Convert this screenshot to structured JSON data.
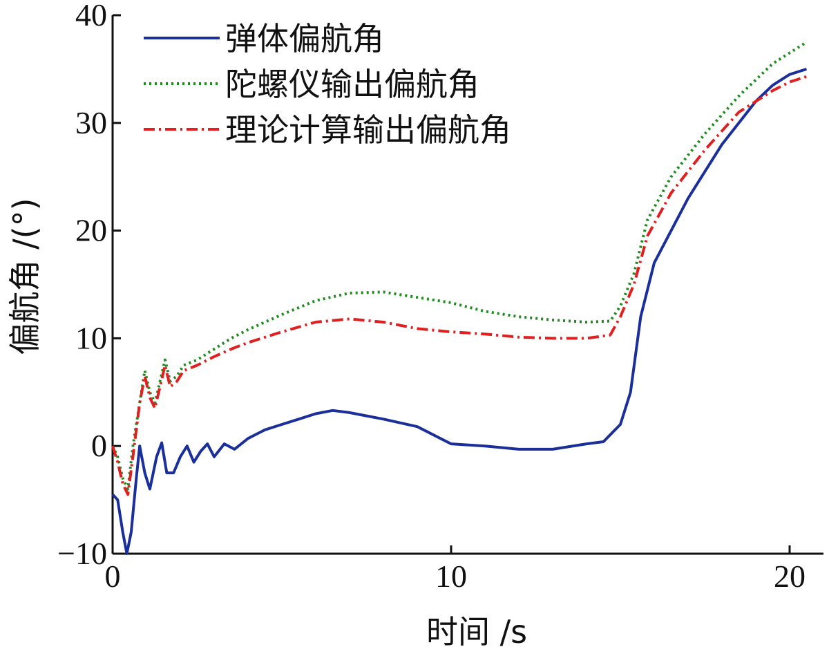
{
  "chart_data": {
    "type": "line",
    "xlabel": "时间 /s",
    "ylabel": "偏航角 /(°)",
    "xlim": [
      0,
      21
    ],
    "ylim": [
      -10,
      40
    ],
    "x_ticks": [
      0,
      10,
      20
    ],
    "y_ticks": [
      -10,
      0,
      10,
      20,
      30,
      40
    ],
    "grid": false,
    "legend_position": "top-left",
    "series": [
      {
        "name": "弹体偏航角",
        "color": "#1a2f9a",
        "style": "solid",
        "points": [
          [
            0,
            -4.5
          ],
          [
            0.15,
            -5
          ],
          [
            0.3,
            -8
          ],
          [
            0.42,
            -10
          ],
          [
            0.55,
            -8
          ],
          [
            0.7,
            -3
          ],
          [
            0.8,
            0
          ],
          [
            0.95,
            -2.5
          ],
          [
            1.1,
            -4
          ],
          [
            1.3,
            -1
          ],
          [
            1.45,
            0.3
          ],
          [
            1.6,
            -2.5
          ],
          [
            1.8,
            -2.5
          ],
          [
            2.0,
            -1
          ],
          [
            2.2,
            0
          ],
          [
            2.4,
            -1.5
          ],
          [
            2.6,
            -0.5
          ],
          [
            2.8,
            0.2
          ],
          [
            3.0,
            -1
          ],
          [
            3.3,
            0.2
          ],
          [
            3.6,
            -0.3
          ],
          [
            4.0,
            0.7
          ],
          [
            4.5,
            1.5
          ],
          [
            5.0,
            2.0
          ],
          [
            5.5,
            2.5
          ],
          [
            6.0,
            3.0
          ],
          [
            6.5,
            3.3
          ],
          [
            7.0,
            3.1
          ],
          [
            7.5,
            2.8
          ],
          [
            8.0,
            2.5
          ],
          [
            9.0,
            1.8
          ],
          [
            10.0,
            0.2
          ],
          [
            11.0,
            0.0
          ],
          [
            12.0,
            -0.3
          ],
          [
            13.0,
            -0.3
          ],
          [
            14.0,
            0.2
          ],
          [
            14.5,
            0.4
          ],
          [
            15.0,
            2.0
          ],
          [
            15.3,
            5
          ],
          [
            15.6,
            12
          ],
          [
            16.0,
            17
          ],
          [
            17.0,
            23
          ],
          [
            18.0,
            28
          ],
          [
            19.0,
            32
          ],
          [
            19.5,
            33.5
          ],
          [
            20.0,
            34.5
          ],
          [
            20.5,
            35
          ]
        ]
      },
      {
        "name": "陀螺仪输出偏航角",
        "color": "#1e8c1e",
        "style": "dotted",
        "points": [
          [
            0,
            0
          ],
          [
            0.15,
            -1
          ],
          [
            0.3,
            -3
          ],
          [
            0.45,
            -4
          ],
          [
            0.6,
            0
          ],
          [
            0.8,
            4
          ],
          [
            0.95,
            7
          ],
          [
            1.1,
            5
          ],
          [
            1.25,
            4
          ],
          [
            1.4,
            6
          ],
          [
            1.55,
            8
          ],
          [
            1.7,
            6
          ],
          [
            1.9,
            6.5
          ],
          [
            2.1,
            7.5
          ],
          [
            2.5,
            8
          ],
          [
            3.0,
            9
          ],
          [
            3.5,
            10
          ],
          [
            4.0,
            10.8
          ],
          [
            5.0,
            12.2
          ],
          [
            6.0,
            13.5
          ],
          [
            7.0,
            14.2
          ],
          [
            8.0,
            14.3
          ],
          [
            9.0,
            13.8
          ],
          [
            10.0,
            13.3
          ],
          [
            11.0,
            12.5
          ],
          [
            12.0,
            12.0
          ],
          [
            13.0,
            11.7
          ],
          [
            14.0,
            11.5
          ],
          [
            14.7,
            11.6
          ],
          [
            15.0,
            13
          ],
          [
            15.4,
            16
          ],
          [
            15.8,
            21
          ],
          [
            16.5,
            25
          ],
          [
            17.5,
            29
          ],
          [
            18.5,
            32.5
          ],
          [
            19.5,
            35.5
          ],
          [
            20.0,
            36.5
          ],
          [
            20.5,
            37.5
          ]
        ]
      },
      {
        "name": "理论计算输出偏航角",
        "color": "#e02020",
        "style": "dashdot",
        "points": [
          [
            0,
            0
          ],
          [
            0.15,
            -1.5
          ],
          [
            0.3,
            -3.5
          ],
          [
            0.45,
            -4.5
          ],
          [
            0.6,
            -1
          ],
          [
            0.8,
            4
          ],
          [
            0.95,
            6.5
          ],
          [
            1.1,
            4.5
          ],
          [
            1.25,
            3.5
          ],
          [
            1.4,
            5.5
          ],
          [
            1.55,
            7.5
          ],
          [
            1.7,
            5.5
          ],
          [
            1.9,
            6
          ],
          [
            2.1,
            7
          ],
          [
            2.5,
            7.5
          ],
          [
            3.0,
            8.3
          ],
          [
            3.5,
            9
          ],
          [
            4.0,
            9.6
          ],
          [
            5.0,
            10.6
          ],
          [
            6.0,
            11.5
          ],
          [
            7.0,
            11.8
          ],
          [
            8.0,
            11.5
          ],
          [
            9.0,
            10.9
          ],
          [
            10.0,
            10.6
          ],
          [
            11.0,
            10.4
          ],
          [
            12.0,
            10.1
          ],
          [
            13.0,
            10.0
          ],
          [
            14.0,
            10.0
          ],
          [
            14.7,
            10.3
          ],
          [
            15.0,
            12
          ],
          [
            15.4,
            15
          ],
          [
            15.8,
            19.5
          ],
          [
            16.5,
            23.5
          ],
          [
            17.5,
            27.5
          ],
          [
            18.5,
            31
          ],
          [
            19.5,
            33
          ],
          [
            20.0,
            33.8
          ],
          [
            20.5,
            34.3
          ]
        ]
      }
    ]
  }
}
